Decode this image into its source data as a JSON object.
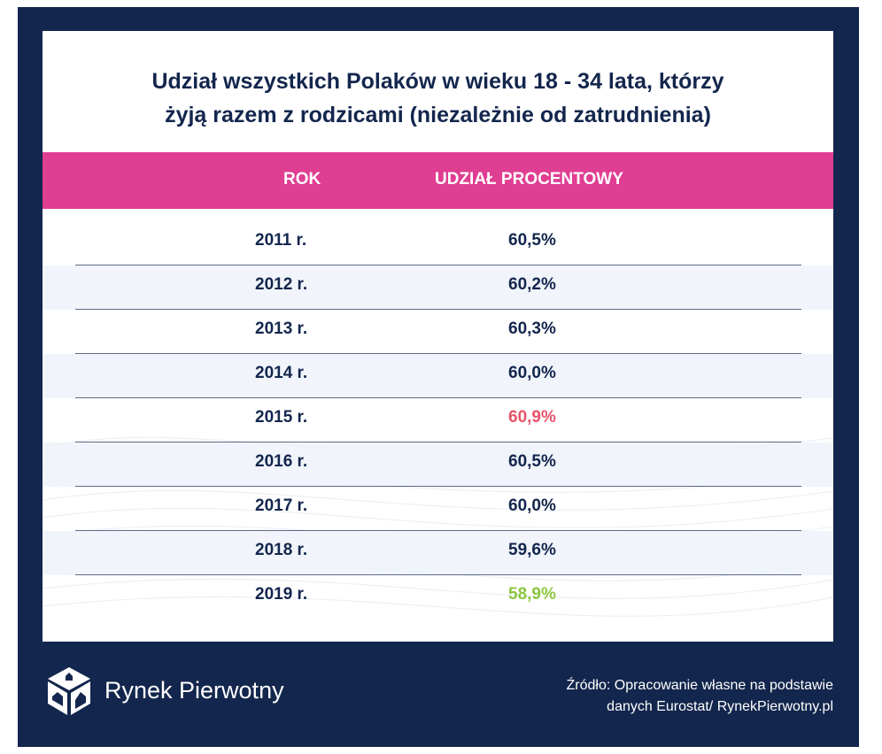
{
  "chart_data": {
    "type": "table",
    "title": "Udział wszystkich Polaków w wieku 18 - 34 lata, którzy żyją razem z rodzicami (niezależnie od zatrudnienia)",
    "title_lines": [
      "Udział wszystkich Polaków w wieku 18 - 34 lata, którzy",
      "żyją razem z rodzicami (niezależnie od zatrudnienia)"
    ],
    "columns": [
      "ROK",
      "UDZIAŁ PROCENTOWY"
    ],
    "rows": [
      {
        "year": "2011 r.",
        "value": "60,5%",
        "color": "#13264d"
      },
      {
        "year": "2012 r.",
        "value": "60,2%",
        "color": "#13264d"
      },
      {
        "year": "2013 r.",
        "value": "60,3%",
        "color": "#13264d"
      },
      {
        "year": "2014 r.",
        "value": "60,0%",
        "color": "#13264d"
      },
      {
        "year": "2015 r.",
        "value": "60,9%",
        "color": "#e8546a"
      },
      {
        "year": "2016 r.",
        "value": "60,5%",
        "color": "#13264d"
      },
      {
        "year": "2017 r.",
        "value": "60,0%",
        "color": "#13264d"
      },
      {
        "year": "2018 r.",
        "value": "59,6%",
        "color": "#13264d"
      },
      {
        "year": "2019 r.",
        "value": "58,9%",
        "color": "#8cc63f"
      }
    ]
  },
  "footer": {
    "brand": "Rynek Pierwotny",
    "source_line1": "Źródło: Opracowanie własne na podstawie",
    "source_line2": "danych Eurostat/ RynekPierwotny.pl",
    "logo_icon": "cube-houses-icon"
  },
  "colors": {
    "frame": "#13264d",
    "header": "#e03e92",
    "text": "#13264d",
    "highlight_max": "#e8546a",
    "highlight_min": "#8cc63f"
  }
}
